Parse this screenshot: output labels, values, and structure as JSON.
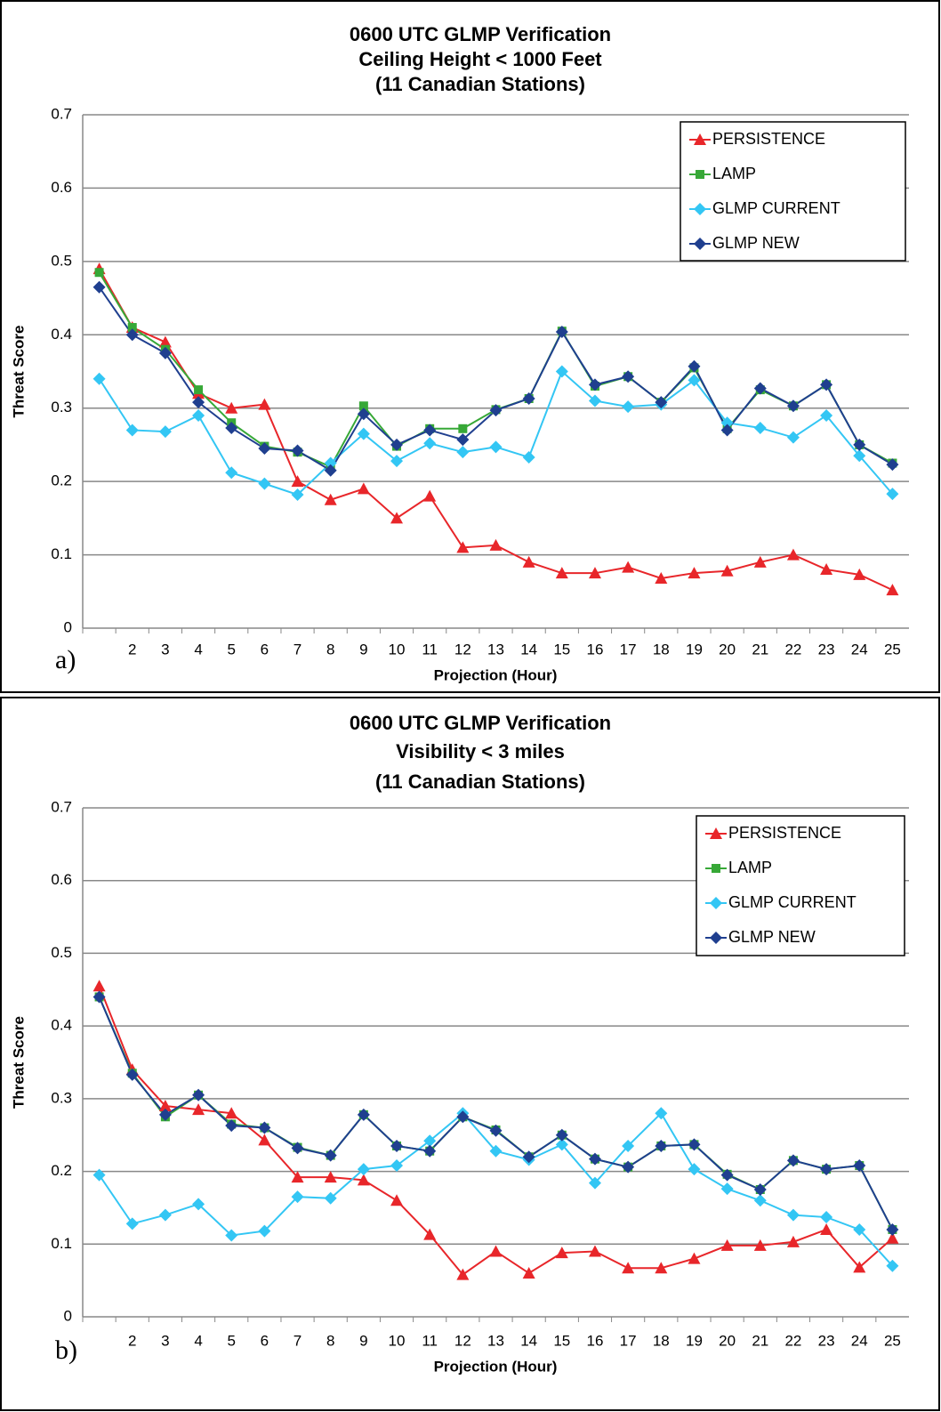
{
  "chart_data": [
    {
      "type": "line",
      "panel_label": "a)",
      "title": [
        "0600 UTC GLMP Verification",
        "Ceiling Height < 1000 Feet",
        "(11 Canadian  Stations)"
      ],
      "y_label": "Threat Score",
      "x_label": "Projection (Hour)",
      "categories": [
        null,
        "2",
        "3",
        "4",
        "5",
        "6",
        "7",
        "8",
        "9",
        "10",
        "11",
        "12",
        "13",
        "14",
        "15",
        "16",
        "17",
        "18",
        "19",
        "20",
        "21",
        "22",
        "23",
        "24",
        "25"
      ],
      "ylim": [
        0,
        0.7
      ],
      "yticks": [
        0,
        0.1,
        0.2,
        0.3,
        0.4,
        0.5,
        0.6,
        0.7
      ],
      "grid": true,
      "legend": "top-right",
      "series": [
        {
          "name": "PERSISTENCE",
          "color": "#e8262a",
          "marker": "triangle",
          "values": [
            0.49,
            0.41,
            0.39,
            0.32,
            0.3,
            0.305,
            0.2,
            0.175,
            0.19,
            0.15,
            0.18,
            0.11,
            0.113,
            0.09,
            0.075,
            0.075,
            0.083,
            0.068,
            0.075,
            0.078,
            0.09,
            0.1,
            0.08,
            0.073,
            0.052
          ]
        },
        {
          "name": "LAMP",
          "color": "#37a837",
          "marker": "square",
          "values": [
            0.485,
            0.41,
            0.38,
            0.325,
            0.28,
            0.248,
            0.24,
            0.22,
            0.303,
            0.248,
            0.272,
            0.272,
            0.298,
            0.313,
            0.405,
            0.33,
            0.343,
            0.308,
            0.355,
            0.272,
            0.325,
            0.303,
            0.332,
            0.25,
            0.225
          ]
        },
        {
          "name": "GLMP  CURRENT",
          "color": "#33c6f4",
          "marker": "diamond",
          "values": [
            0.34,
            0.27,
            0.268,
            0.29,
            0.212,
            0.197,
            0.182,
            0.225,
            0.265,
            0.228,
            0.252,
            0.24,
            0.247,
            0.233,
            0.35,
            0.31,
            0.302,
            0.305,
            0.338,
            0.28,
            0.273,
            0.26,
            0.29,
            0.235,
            0.183
          ]
        },
        {
          "name": "GLMP  NEW",
          "color": "#1f3f8f",
          "marker": "diamond",
          "values": [
            0.465,
            0.4,
            0.375,
            0.308,
            0.273,
            0.245,
            0.242,
            0.215,
            0.292,
            0.25,
            0.27,
            0.257,
            0.297,
            0.313,
            0.404,
            0.332,
            0.343,
            0.308,
            0.357,
            0.27,
            0.327,
            0.303,
            0.332,
            0.25,
            0.223
          ]
        }
      ]
    },
    {
      "type": "line",
      "panel_label": "b)",
      "title": [
        "0600 UTC GLMP Verification",
        "Visibility < 3 miles",
        "(11 Canadian  Stations)"
      ],
      "y_label": "Threat Score",
      "x_label": "Projection (Hour)",
      "categories": [
        null,
        "2",
        "3",
        "4",
        "5",
        "6",
        "7",
        "8",
        "9",
        "10",
        "11",
        "12",
        "13",
        "14",
        "15",
        "16",
        "17",
        "18",
        "19",
        "20",
        "21",
        "22",
        "23",
        "24",
        "25"
      ],
      "ylim": [
        0,
        0.7
      ],
      "yticks": [
        0,
        0.1,
        0.2,
        0.3,
        0.4,
        0.5,
        0.6,
        0.7
      ],
      "grid": true,
      "legend": "top-right",
      "series": [
        {
          "name": "PERSISTENCE",
          "color": "#e8262a",
          "marker": "triangle",
          "values": [
            0.455,
            0.34,
            0.29,
            0.285,
            0.28,
            0.243,
            0.192,
            0.192,
            0.188,
            0.16,
            0.113,
            0.058,
            0.09,
            0.06,
            0.088,
            0.09,
            0.067,
            0.067,
            0.08,
            0.098,
            0.098,
            0.103,
            0.12,
            0.068,
            0.108
          ]
        },
        {
          "name": "LAMP",
          "color": "#37a837",
          "marker": "square",
          "values": [
            0.44,
            0.335,
            0.275,
            0.305,
            0.265,
            0.26,
            0.233,
            0.222,
            0.278,
            0.235,
            0.228,
            0.275,
            0.257,
            0.22,
            0.25,
            0.217,
            0.206,
            0.235,
            0.237,
            0.196,
            0.175,
            0.215,
            0.203,
            0.208,
            0.12
          ]
        },
        {
          "name": "GLMP  CURRENT",
          "color": "#33c6f4",
          "marker": "diamond",
          "values": [
            0.195,
            0.128,
            0.14,
            0.155,
            0.112,
            0.118,
            0.165,
            0.163,
            0.203,
            0.208,
            0.242,
            0.28,
            0.228,
            0.216,
            0.237,
            0.184,
            0.235,
            0.28,
            0.203,
            0.176,
            0.16,
            0.14,
            0.137,
            0.12,
            0.07
          ]
        },
        {
          "name": "GLMP  NEW",
          "color": "#1f3f8f",
          "marker": "diamond",
          "values": [
            0.44,
            0.333,
            0.278,
            0.305,
            0.263,
            0.26,
            0.232,
            0.222,
            0.278,
            0.235,
            0.228,
            0.275,
            0.256,
            0.22,
            0.25,
            0.217,
            0.206,
            0.235,
            0.237,
            0.195,
            0.175,
            0.215,
            0.203,
            0.208,
            0.12
          ]
        }
      ]
    }
  ]
}
